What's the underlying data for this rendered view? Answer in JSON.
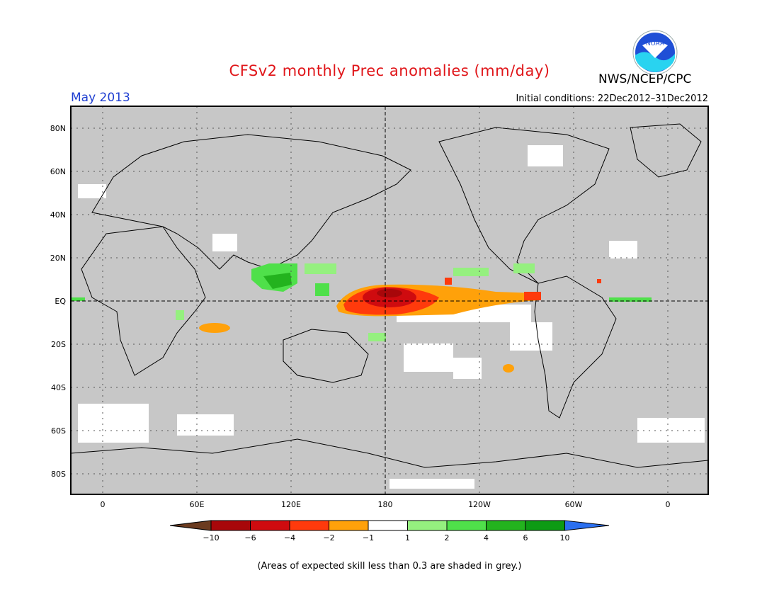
{
  "header": {
    "title": "CFSv2 monthly Prec anomalies (mm/day)",
    "month": "May 2013",
    "initial_conditions": "Initial conditions: 22Dec2012–31Dec2012",
    "agency": "NWS/NCEP/CPC",
    "logo_text": "NOAA"
  },
  "axes": {
    "lat_labels": [
      "80N",
      "60N",
      "40N",
      "20N",
      "EQ",
      "20S",
      "40S",
      "60S",
      "80S"
    ],
    "lon_labels": [
      "0",
      "60E",
      "120E",
      "180",
      "120W",
      "60W",
      "0"
    ]
  },
  "colorbar": {
    "labels": [
      "−10",
      "−6",
      "−4",
      "−2",
      "−1",
      "1",
      "2",
      "4",
      "6",
      "10"
    ],
    "colors": [
      "#6b3b1f",
      "#a8070a",
      "#cf0b0f",
      "#ff3a0c",
      "#ffa10a",
      "#ffffff",
      "#95f07f",
      "#4fe04a",
      "#23b31e",
      "#0d9b14",
      "#2a6ff0"
    ]
  },
  "footnote": "(Areas of expected skill less than 0.3 are shaded in grey.)",
  "colors": {
    "grey_mask": "#c7c7c7",
    "title": "#e0161a",
    "month": "#1f3fd1"
  }
}
